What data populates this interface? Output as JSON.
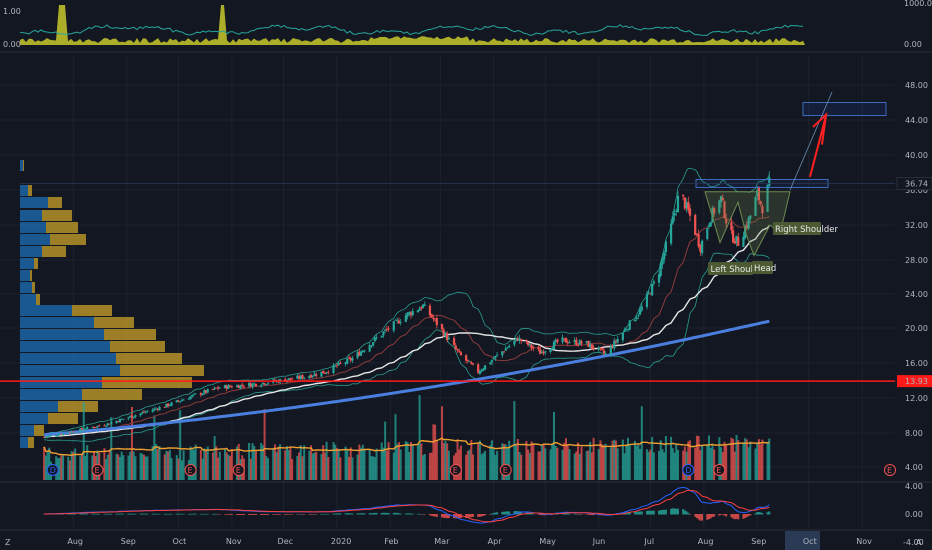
{
  "colors": {
    "background": "#131722",
    "grid": "#1e222d",
    "up": "#26a69a",
    "down": "#ef5350",
    "vol_up": "#26a69a",
    "vol_down": "#ef5350",
    "sma_long": "#4a7fe0",
    "sma_mid": "#e6e6e6",
    "sma_short": "#8b3b3b",
    "bollinger": "#2a9d8f",
    "support": "#ff1a1a",
    "target_arrow": "#ff2020",
    "vp_left": "#1e6fb8",
    "vp_right": "#c9a227",
    "vol_ma": "#f0a030",
    "macd": "#2962ff",
    "signal": "#ff4040",
    "top_fill": "#c8c82a",
    "top_line": "#26a69a",
    "label_bg": "#4b5a32"
  },
  "top_panel": {
    "right_labels": [
      "1000.00",
      "0.00"
    ],
    "left_labels": [
      "1.00",
      "0.00"
    ]
  },
  "price_axis": {
    "ticks": [
      "48.00",
      "44.00",
      "40.00",
      "36.00",
      "32.00",
      "28.00",
      "24.00",
      "20.00",
      "16.00",
      "12.00",
      "8.00",
      "4.00"
    ],
    "current_price": "36.74",
    "support_price": "13.93"
  },
  "macd_axis": {
    "ticks": [
      "4.00",
      "0.00",
      "-4.00"
    ]
  },
  "time_axis": {
    "labels": [
      "Aug",
      "Sep",
      "Oct",
      "Nov",
      "Dec",
      "2020",
      "Feb",
      "Mar",
      "Apr",
      "May",
      "Jun",
      "Jul",
      "Aug",
      "Sep",
      "Oct",
      "Nov"
    ],
    "highlighted": "Sep"
  },
  "annotations": {
    "left_shoulder": "Left Shoulder",
    "head": "Head",
    "right_shoulder": "Right Shoulder"
  },
  "event_markers": [
    "D",
    "E",
    "E",
    "E",
    "E",
    "E",
    "D",
    "E",
    "E"
  ],
  "corner_icons": {
    "left": "Z",
    "right": "A"
  },
  "chart_data": {
    "type": "candlestick",
    "x_start": "2019-07",
    "x_end": "2020-09",
    "ylim": [
      4,
      50
    ],
    "price_path": [
      {
        "x": "2019-07-15",
        "y": 7.5
      },
      {
        "x": "2019-08-01",
        "y": 8.2
      },
      {
        "x": "2019-08-20",
        "y": 9.0
      },
      {
        "x": "2019-09-05",
        "y": 10.0
      },
      {
        "x": "2019-09-25",
        "y": 11.2
      },
      {
        "x": "2019-10-10",
        "y": 12.3
      },
      {
        "x": "2019-10-25",
        "y": 13.2
      },
      {
        "x": "2019-11-10",
        "y": 13.5
      },
      {
        "x": "2019-11-25",
        "y": 13.9
      },
      {
        "x": "2019-12-10",
        "y": 14.3
      },
      {
        "x": "2019-12-25",
        "y": 15.0
      },
      {
        "x": "2020-01-10",
        "y": 16.5
      },
      {
        "x": "2020-01-25",
        "y": 19.0
      },
      {
        "x": "2020-02-10",
        "y": 21.5
      },
      {
        "x": "2020-02-20",
        "y": 22.6
      },
      {
        "x": "2020-03-01",
        "y": 20.0
      },
      {
        "x": "2020-03-12",
        "y": 17.0
      },
      {
        "x": "2020-03-23",
        "y": 15.0
      },
      {
        "x": "2020-04-01",
        "y": 16.5
      },
      {
        "x": "2020-04-15",
        "y": 18.8
      },
      {
        "x": "2020-04-28",
        "y": 17.2
      },
      {
        "x": "2020-05-10",
        "y": 18.6
      },
      {
        "x": "2020-05-25",
        "y": 18.2
      },
      {
        "x": "2020-06-05",
        "y": 17.0
      },
      {
        "x": "2020-06-15",
        "y": 19.5
      },
      {
        "x": "2020-06-25",
        "y": 22.0
      },
      {
        "x": "2020-07-05",
        "y": 26.0
      },
      {
        "x": "2020-07-12",
        "y": 31.0
      },
      {
        "x": "2020-07-18",
        "y": 35.8
      },
      {
        "x": "2020-07-24",
        "y": 33.0
      },
      {
        "x": "2020-07-30",
        "y": 29.5
      },
      {
        "x": "2020-08-05",
        "y": 33.0
      },
      {
        "x": "2020-08-11",
        "y": 35.0
      },
      {
        "x": "2020-08-16",
        "y": 31.0
      },
      {
        "x": "2020-08-21",
        "y": 30.0
      },
      {
        "x": "2020-08-27",
        "y": 32.5
      },
      {
        "x": "2020-09-01",
        "y": 35.5
      },
      {
        "x": "2020-09-04",
        "y": 34.0
      },
      {
        "x": "2020-09-08",
        "y": 36.74
      }
    ],
    "volume_ylim": [
      0,
      14
    ],
    "support_level": 13.93,
    "neckline": 36.74,
    "target_zone": [
      44.5,
      46.0
    ]
  }
}
